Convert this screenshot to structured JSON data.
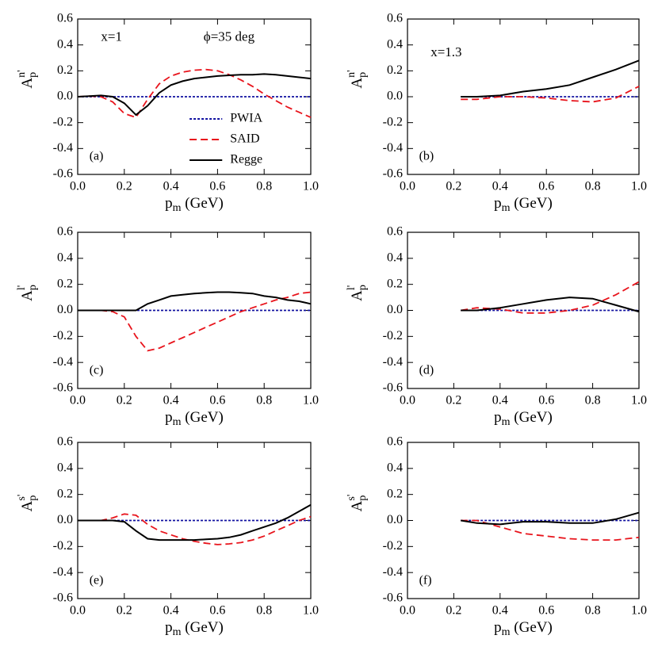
{
  "chart_data": [
    {
      "type": "line",
      "panel_label": "(a)",
      "annotations": [
        "x=1",
        "ϕ=35 deg"
      ],
      "legend": "lower-center",
      "xlabel": {
        "base": "p",
        "sub": "m",
        "rest": " (GeV)"
      },
      "ylabel": {
        "base": "A",
        "sub": "p",
        "sup": "n'"
      },
      "xlim": [
        0,
        1
      ],
      "ylim": [
        -0.6,
        0.6
      ],
      "xticks": [
        {
          "value": 0,
          "label": "0.0"
        },
        0.2,
        0.4,
        0.6,
        0.8,
        {
          "value": 1,
          "label": "1.0"
        }
      ],
      "yticks": [
        -0.6,
        -0.4,
        -0.2,
        {
          "value": 0,
          "label": "0.0"
        },
        0.2,
        0.4,
        0.6
      ],
      "x": [
        0,
        0.05,
        0.1,
        0.15,
        0.2,
        0.25,
        0.3,
        0.35,
        0.4,
        0.45,
        0.5,
        0.55,
        0.6,
        0.65,
        0.7,
        0.75,
        0.8,
        0.85,
        0.9,
        0.95,
        1
      ],
      "series": [
        {
          "name": "PWIA",
          "color": "#1010a0",
          "style": "dotted",
          "values": [
            0,
            0,
            0,
            0,
            0,
            0,
            0,
            0,
            0,
            0,
            0,
            0,
            0,
            0,
            0,
            0,
            0,
            0,
            0,
            0,
            0
          ]
        },
        {
          "name": "SAID",
          "color": "#e8141c",
          "style": "dashed",
          "values": [
            0,
            0.005,
            0,
            -0.04,
            -0.13,
            -0.16,
            -0.02,
            0.1,
            0.16,
            0.19,
            0.205,
            0.21,
            0.2,
            0.17,
            0.13,
            0.08,
            0.02,
            -0.03,
            -0.08,
            -0.12,
            -0.16
          ]
        },
        {
          "name": "Regge",
          "color": "#000000",
          "style": "solid",
          "values": [
            0,
            0.005,
            0.01,
            0,
            -0.05,
            -0.14,
            -0.07,
            0.03,
            0.09,
            0.12,
            0.14,
            0.15,
            0.16,
            0.165,
            0.17,
            0.17,
            0.175,
            0.17,
            0.16,
            0.15,
            0.14
          ]
        }
      ]
    },
    {
      "type": "line",
      "panel_label": "(b)",
      "annotations": [
        "x=1.3"
      ],
      "xlabel": {
        "base": "p",
        "sub": "m",
        "rest": " (GeV)"
      },
      "ylabel": {
        "base": "A",
        "sub": "p",
        "sup": "n'"
      },
      "xlim": [
        0,
        1
      ],
      "ylim": [
        -0.6,
        0.6
      ],
      "xticks": [
        {
          "value": 0,
          "label": "0.0"
        },
        0.2,
        0.4,
        0.6,
        0.8,
        {
          "value": 1,
          "label": "1.0"
        }
      ],
      "yticks": [
        -0.6,
        -0.4,
        -0.2,
        {
          "value": 0,
          "label": "0.0"
        },
        0.2,
        0.4,
        0.6
      ],
      "x": [
        0.23,
        0.3,
        0.4,
        0.5,
        0.6,
        0.7,
        0.8,
        0.9,
        1
      ],
      "series": [
        {
          "color": "#1010a0",
          "style": "dotted",
          "values": [
            0,
            0,
            0,
            0,
            0,
            0,
            0,
            0,
            0
          ]
        },
        {
          "color": "#e8141c",
          "style": "dashed",
          "values": [
            -0.02,
            -0.02,
            0,
            0,
            -0.01,
            -0.03,
            -0.04,
            -0.01,
            0.08
          ]
        },
        {
          "color": "#000000",
          "style": "solid",
          "values": [
            0,
            0,
            0.01,
            0.04,
            0.06,
            0.09,
            0.15,
            0.21,
            0.28
          ]
        }
      ]
    },
    {
      "type": "line",
      "panel_label": "(c)",
      "xlabel": {
        "base": "p",
        "sub": "m",
        "rest": " (GeV)"
      },
      "ylabel": {
        "base": "A",
        "sub": "p",
        "sup": "l'"
      },
      "xlim": [
        0,
        1
      ],
      "ylim": [
        -0.6,
        0.6
      ],
      "xticks": [
        {
          "value": 0,
          "label": "0.0"
        },
        0.2,
        0.4,
        0.6,
        0.8,
        {
          "value": 1,
          "label": "1.0"
        }
      ],
      "yticks": [
        -0.6,
        -0.4,
        -0.2,
        {
          "value": 0,
          "label": "0.0"
        },
        0.2,
        0.4,
        0.6
      ],
      "x": [
        0,
        0.05,
        0.1,
        0.15,
        0.2,
        0.25,
        0.3,
        0.35,
        0.4,
        0.45,
        0.5,
        0.55,
        0.6,
        0.65,
        0.7,
        0.75,
        0.8,
        0.85,
        0.9,
        0.95,
        1
      ],
      "series": [
        {
          "color": "#1010a0",
          "style": "dotted",
          "values": [
            0,
            0,
            0,
            0,
            0,
            0,
            0,
            0,
            0,
            0,
            0,
            0,
            0,
            0,
            0,
            0,
            0,
            0,
            0,
            0,
            0
          ]
        },
        {
          "color": "#e8141c",
          "style": "dashed",
          "values": [
            0,
            0,
            0,
            -0.01,
            -0.05,
            -0.2,
            -0.31,
            -0.29,
            -0.25,
            -0.21,
            -0.17,
            -0.13,
            -0.09,
            -0.05,
            -0.01,
            0.02,
            0.05,
            0.08,
            0.1,
            0.13,
            0.14
          ]
        },
        {
          "color": "#000000",
          "style": "solid",
          "values": [
            0,
            0,
            0,
            0,
            0,
            0,
            0.05,
            0.08,
            0.11,
            0.12,
            0.13,
            0.135,
            0.14,
            0.14,
            0.135,
            0.13,
            0.11,
            0.1,
            0.08,
            0.07,
            0.05
          ]
        }
      ]
    },
    {
      "type": "line",
      "panel_label": "(d)",
      "xlabel": {
        "base": "p",
        "sub": "m",
        "rest": " (GeV)"
      },
      "ylabel": {
        "base": "A",
        "sub": "p",
        "sup": "l'"
      },
      "xlim": [
        0,
        1
      ],
      "ylim": [
        -0.6,
        0.6
      ],
      "xticks": [
        {
          "value": 0,
          "label": "0.0"
        },
        0.2,
        0.4,
        0.6,
        0.8,
        {
          "value": 1,
          "label": "1.0"
        }
      ],
      "yticks": [
        -0.6,
        -0.4,
        -0.2,
        {
          "value": 0,
          "label": "0.0"
        },
        0.2,
        0.4,
        0.6
      ],
      "x": [
        0.23,
        0.3,
        0.4,
        0.5,
        0.6,
        0.7,
        0.8,
        0.9,
        1
      ],
      "series": [
        {
          "color": "#1010a0",
          "style": "dotted",
          "values": [
            0,
            0,
            0,
            0,
            0,
            0,
            0,
            0,
            0
          ]
        },
        {
          "color": "#e8141c",
          "style": "dashed",
          "values": [
            0,
            0.02,
            0.01,
            -0.02,
            -0.02,
            0,
            0.04,
            0.12,
            0.22
          ]
        },
        {
          "color": "#000000",
          "style": "solid",
          "values": [
            0,
            0,
            0.02,
            0.05,
            0.08,
            0.1,
            0.09,
            0.04,
            -0.01
          ]
        }
      ]
    },
    {
      "type": "line",
      "panel_label": "(e)",
      "xlabel": {
        "base": "p",
        "sub": "m",
        "rest": " (GeV)"
      },
      "ylabel": {
        "base": "A",
        "sub": "p",
        "sup": "s'"
      },
      "xlim": [
        0,
        1
      ],
      "ylim": [
        -0.6,
        0.6
      ],
      "xticks": [
        {
          "value": 0,
          "label": "0.0"
        },
        0.2,
        0.4,
        0.6,
        0.8,
        {
          "value": 1,
          "label": "1.0"
        }
      ],
      "yticks": [
        -0.6,
        -0.4,
        -0.2,
        {
          "value": 0,
          "label": "0.0"
        },
        0.2,
        0.4,
        0.6
      ],
      "x": [
        0,
        0.05,
        0.1,
        0.15,
        0.2,
        0.25,
        0.3,
        0.35,
        0.4,
        0.45,
        0.5,
        0.55,
        0.6,
        0.65,
        0.7,
        0.75,
        0.8,
        0.85,
        0.9,
        0.95,
        1
      ],
      "series": [
        {
          "color": "#1010a0",
          "style": "dotted",
          "values": [
            0,
            0,
            0,
            0,
            0,
            0,
            0,
            0,
            0,
            0,
            0,
            0,
            0,
            0,
            0,
            0,
            0,
            0,
            0,
            0,
            0
          ]
        },
        {
          "color": "#e8141c",
          "style": "dashed",
          "values": [
            0,
            0,
            0,
            0.02,
            0.05,
            0.04,
            -0.03,
            -0.08,
            -0.11,
            -0.14,
            -0.16,
            -0.175,
            -0.185,
            -0.18,
            -0.17,
            -0.15,
            -0.12,
            -0.08,
            -0.04,
            0,
            0.03
          ]
        },
        {
          "color": "#000000",
          "style": "solid",
          "values": [
            0,
            0,
            0,
            0,
            -0.01,
            -0.08,
            -0.14,
            -0.15,
            -0.15,
            -0.15,
            -0.15,
            -0.145,
            -0.14,
            -0.13,
            -0.11,
            -0.08,
            -0.05,
            -0.02,
            0.02,
            0.07,
            0.12
          ]
        }
      ]
    },
    {
      "type": "line",
      "panel_label": "(f)",
      "xlabel": {
        "base": "p",
        "sub": "m",
        "rest": " (GeV)"
      },
      "ylabel": {
        "base": "A",
        "sub": "p",
        "sup": "s'"
      },
      "xlim": [
        0,
        1
      ],
      "ylim": [
        -0.6,
        0.6
      ],
      "xticks": [
        {
          "value": 0,
          "label": "0.0"
        },
        0.2,
        0.4,
        0.6,
        0.8,
        {
          "value": 1,
          "label": "1.0"
        }
      ],
      "yticks": [
        -0.6,
        -0.4,
        -0.2,
        {
          "value": 0,
          "label": "0.0"
        },
        0.2,
        0.4,
        0.6
      ],
      "x": [
        0.23,
        0.3,
        0.4,
        0.5,
        0.6,
        0.7,
        0.8,
        0.9,
        1
      ],
      "series": [
        {
          "color": "#1010a0",
          "style": "dotted",
          "values": [
            0,
            0,
            0,
            0,
            0,
            0,
            0,
            0,
            0
          ]
        },
        {
          "color": "#e8141c",
          "style": "dashed",
          "values": [
            0,
            0,
            -0.05,
            -0.1,
            -0.12,
            -0.14,
            -0.15,
            -0.15,
            -0.13
          ]
        },
        {
          "color": "#000000",
          "style": "solid",
          "values": [
            0,
            -0.02,
            -0.03,
            -0.01,
            -0.01,
            -0.02,
            -0.02,
            0.01,
            0.06
          ]
        }
      ]
    }
  ]
}
